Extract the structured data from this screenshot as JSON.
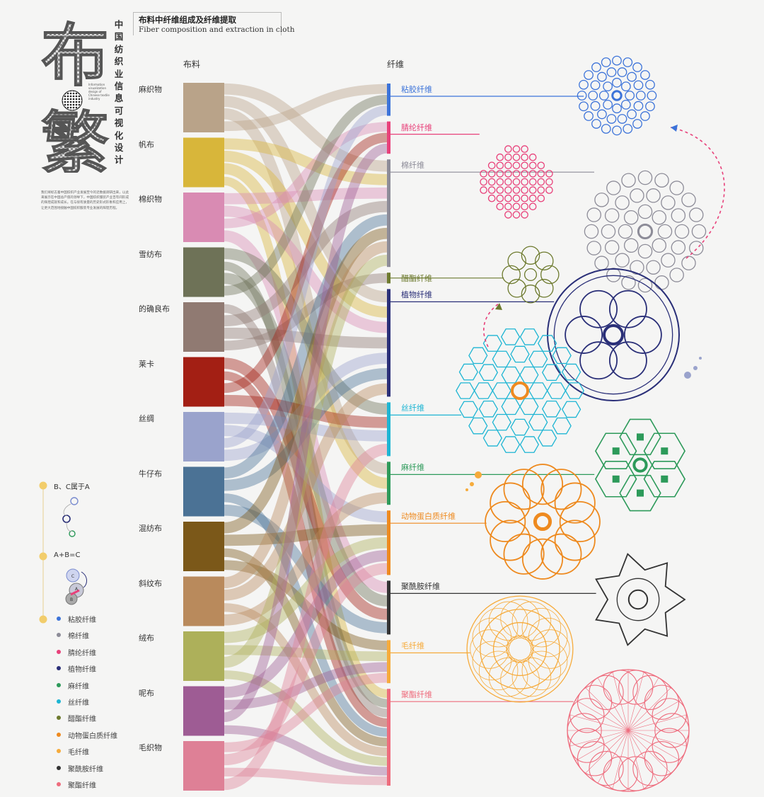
{
  "logo": {
    "chars": [
      "布",
      "繁"
    ]
  },
  "vertical_title": [
    "中",
    "国",
    "纺",
    "织",
    "业",
    "信",
    "息",
    "可",
    "视",
    "化",
    "设",
    "计"
  ],
  "subnote": "Information visualization design of Chinese textile industry",
  "intro": "我们将标志着中国纺织产业发展至今的近数据调研出来，以此来展示在中国总产值的领导下，中国纺织服装产业百年间形成的辉煌成就和成长。在与很有质量的历史形式形象和应用上，让更大范围地接触中国纺织服装专业发展的辉煌历程。",
  "title": {
    "cn": "布料中纤维组成及纤维提取",
    "en": "Fiber composition and extraction in cloth"
  },
  "headers": {
    "fabric": "布料",
    "fiber": "纤维"
  },
  "fabrics": [
    {
      "name": "麻织物",
      "color": "#b9a389"
    },
    {
      "name": "帆布",
      "color": "#d8b63a"
    },
    {
      "name": "棉织物",
      "color": "#d98bb3"
    },
    {
      "name": "雪纺布",
      "color": "#6e7257"
    },
    {
      "name": "的确良布",
      "color": "#907a72"
    },
    {
      "name": "莱卡",
      "color": "#a31f14"
    },
    {
      "name": "丝绸",
      "color": "#9aa3cc"
    },
    {
      "name": "牛仔布",
      "color": "#4b7295"
    },
    {
      "name": "混纺布",
      "color": "#7b5819"
    },
    {
      "name": "斜纹布",
      "color": "#b98a5c"
    },
    {
      "name": "绒布",
      "color": "#adb05a"
    },
    {
      "name": "呢布",
      "color": "#9e5c94"
    },
    {
      "name": "毛织物",
      "color": "#de8096"
    }
  ],
  "fibers": [
    {
      "name": "粘胶纤维",
      "color": "#3c73d9",
      "weight": 3
    },
    {
      "name": "腈纶纤维",
      "color": "#e8417a",
      "weight": 3
    },
    {
      "name": "棉纤维",
      "color": "#8d8c98",
      "weight": 10
    },
    {
      "name": "醋酯纤维",
      "color": "#6d7a2e",
      "weight": 1
    },
    {
      "name": "植物纤维",
      "color": "#2a2f78",
      "weight": 10
    },
    {
      "name": "丝纤维",
      "color": "#1db5d3",
      "weight": 5
    },
    {
      "name": "麻纤维",
      "color": "#2d9a5a",
      "weight": 4
    },
    {
      "name": "动物蛋白质纤维",
      "color": "#ee8a1f",
      "weight": 6
    },
    {
      "name": "聚酰胺纤维",
      "color": "#333333",
      "weight": 5
    },
    {
      "name": "毛纤维",
      "color": "#f6ab3b",
      "weight": 4
    },
    {
      "name": "聚酯纤维",
      "color": "#ee6c7d",
      "weight": 9
    }
  ],
  "flows": [
    [
      0,
      2
    ],
    [
      0,
      4
    ],
    [
      0,
      6
    ],
    [
      0,
      0
    ],
    [
      1,
      2
    ],
    [
      1,
      4
    ],
    [
      1,
      6
    ],
    [
      1,
      10
    ],
    [
      2,
      2
    ],
    [
      2,
      4
    ],
    [
      2,
      1
    ],
    [
      2,
      8
    ],
    [
      3,
      5
    ],
    [
      3,
      10
    ],
    [
      3,
      8
    ],
    [
      3,
      0
    ],
    [
      4,
      10
    ],
    [
      4,
      2
    ],
    [
      4,
      4
    ],
    [
      4,
      3
    ],
    [
      5,
      8
    ],
    [
      5,
      10
    ],
    [
      5,
      1
    ],
    [
      5,
      5
    ],
    [
      6,
      5
    ],
    [
      6,
      7
    ],
    [
      6,
      0
    ],
    [
      6,
      4
    ],
    [
      7,
      2
    ],
    [
      7,
      4
    ],
    [
      7,
      10
    ],
    [
      7,
      8
    ],
    [
      8,
      2
    ],
    [
      8,
      7
    ],
    [
      8,
      10
    ],
    [
      8,
      9
    ],
    [
      9,
      2
    ],
    [
      9,
      4
    ],
    [
      9,
      10
    ],
    [
      9,
      6
    ],
    [
      10,
      7
    ],
    [
      10,
      9
    ],
    [
      10,
      2
    ],
    [
      10,
      10
    ],
    [
      11,
      7
    ],
    [
      11,
      9
    ],
    [
      11,
      1
    ],
    [
      11,
      10
    ],
    [
      12,
      9
    ],
    [
      12,
      7
    ],
    [
      12,
      10
    ],
    [
      12,
      5
    ]
  ],
  "legend": {
    "relation1": "B、C属于A",
    "relation2": "A+B=C",
    "circle_labels": [
      "A",
      "B",
      "C"
    ],
    "items": [
      {
        "name": "粘胶纤维",
        "color": "#3c73d9"
      },
      {
        "name": "棉纤维",
        "color": "#8d8c98"
      },
      {
        "name": "腈纶纤维",
        "color": "#e8417a"
      },
      {
        "name": "植物纤维",
        "color": "#2a2f78"
      },
      {
        "name": "麻纤维",
        "color": "#2d9a5a"
      },
      {
        "name": "丝纤维",
        "color": "#1db5d3"
      },
      {
        "name": "醋酯纤维",
        "color": "#6d7a2e"
      },
      {
        "name": "动物蛋白质纤维",
        "color": "#ee8a1f"
      },
      {
        "name": "毛纤维",
        "color": "#f6ab3b"
      },
      {
        "name": "聚酰胺纤维",
        "color": "#333333"
      },
      {
        "name": "聚酯纤维",
        "color": "#ee6c7d"
      }
    ]
  },
  "accent": "#f2cd6b"
}
